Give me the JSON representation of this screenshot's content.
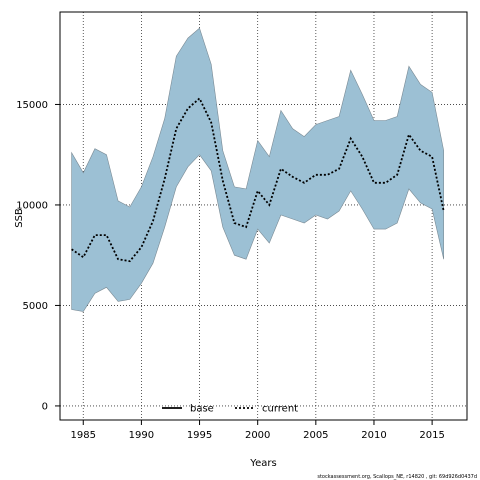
{
  "chart_data": {
    "type": "line",
    "xlabel": "Years",
    "ylabel": "SSB",
    "xlim": [
      1983,
      2018
    ],
    "ylim": [
      -700,
      19600
    ],
    "xticks": [
      1985,
      1990,
      1995,
      2000,
      2005,
      2010,
      2015
    ],
    "yticks": [
      0,
      5000,
      10000,
      15000
    ],
    "grid": true,
    "legend_placement": "bottom-center",
    "legend": [
      {
        "name": "base",
        "style": "solid",
        "color": "#000000"
      },
      {
        "name": "current",
        "style": "dotted",
        "color": "#000000"
      }
    ],
    "band_color": "#9cc0d4",
    "x": [
      1984,
      1985,
      1986,
      1987,
      1988,
      1989,
      1990,
      1991,
      1992,
      1993,
      1994,
      1995,
      1996,
      1997,
      1998,
      1999,
      2000,
      2001,
      2002,
      2003,
      2004,
      2005,
      2006,
      2007,
      2008,
      2009,
      2010,
      2011,
      2012,
      2013,
      2014,
      2015,
      2016
    ],
    "series": [
      {
        "name": "current",
        "values": [
          7800,
          7400,
          8500,
          8500,
          7300,
          7200,
          7900,
          9200,
          11300,
          13800,
          14800,
          15300,
          14100,
          11200,
          9100,
          8900,
          10700,
          10000,
          11800,
          11400,
          11100,
          11500,
          11500,
          11800,
          13300,
          12400,
          11100,
          11100,
          11500,
          13500,
          12700,
          12400,
          9700
        ],
        "lower": [
          4800,
          4700,
          5600,
          5900,
          5200,
          5300,
          6100,
          7100,
          8900,
          10900,
          11900,
          12500,
          11700,
          8900,
          7500,
          7300,
          8800,
          8100,
          9500,
          9300,
          9100,
          9500,
          9300,
          9700,
          10700,
          9800,
          8800,
          8800,
          9100,
          10800,
          10100,
          9800,
          7300
        ],
        "upper": [
          12600,
          11600,
          12800,
          12500,
          10200,
          9900,
          10900,
          12400,
          14300,
          17400,
          18300,
          18800,
          17000,
          12700,
          10900,
          10800,
          13200,
          12400,
          14700,
          13800,
          13400,
          14000,
          14200,
          14400,
          16700,
          15500,
          14200,
          14200,
          14400,
          16900,
          16000,
          15600,
          12700
        ]
      }
    ]
  },
  "footer": "stockassessment.org, Scallops_NE, r14820 , git: 69d926d0437d"
}
